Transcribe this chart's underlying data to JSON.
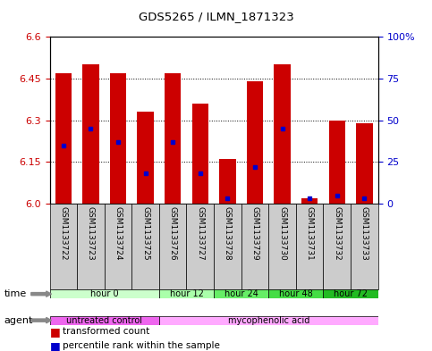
{
  "title": "GDS5265 / ILMN_1871323",
  "samples": [
    "GSM1133722",
    "GSM1133723",
    "GSM1133724",
    "GSM1133725",
    "GSM1133726",
    "GSM1133727",
    "GSM1133728",
    "GSM1133729",
    "GSM1133730",
    "GSM1133731",
    "GSM1133732",
    "GSM1133733"
  ],
  "bar_tops": [
    6.47,
    6.5,
    6.47,
    6.33,
    6.47,
    6.36,
    6.16,
    6.44,
    6.5,
    6.02,
    6.3,
    6.29
  ],
  "bar_base": 6.0,
  "blue_vals": [
    6.21,
    6.27,
    6.22,
    6.11,
    6.22,
    6.11,
    6.02,
    6.13,
    6.27,
    6.02,
    6.03,
    6.02
  ],
  "ylim_min": 6.0,
  "ylim_max": 6.6,
  "yticks_left": [
    6.0,
    6.15,
    6.3,
    6.45,
    6.6
  ],
  "yticks_right": [
    0,
    25,
    50,
    75,
    100
  ],
  "bar_color": "#cc0000",
  "blue_color": "#0000cc",
  "time_groups": [
    {
      "label": "hour 0",
      "start": 0,
      "end": 4,
      "color": "#ccffcc"
    },
    {
      "label": "hour 12",
      "start": 4,
      "end": 6,
      "color": "#aaffaa"
    },
    {
      "label": "hour 24",
      "start": 6,
      "end": 8,
      "color": "#66ee66"
    },
    {
      "label": "hour 48",
      "start": 8,
      "end": 10,
      "color": "#44dd44"
    },
    {
      "label": "hour 72",
      "start": 10,
      "end": 12,
      "color": "#22bb22"
    }
  ],
  "agent_groups": [
    {
      "label": "untreated control",
      "start": 0,
      "end": 4,
      "color": "#ee66ee"
    },
    {
      "label": "mycophenolic acid",
      "start": 4,
      "end": 12,
      "color": "#ffaaff"
    }
  ],
  "tick_label_color": "#cc0000",
  "right_tick_color": "#0000cc",
  "bar_width": 0.6,
  "plot_bg": "#ffffff",
  "legend_red_label": "transformed count",
  "legend_blue_label": "percentile rank within the sample",
  "sample_box_color": "#cccccc"
}
